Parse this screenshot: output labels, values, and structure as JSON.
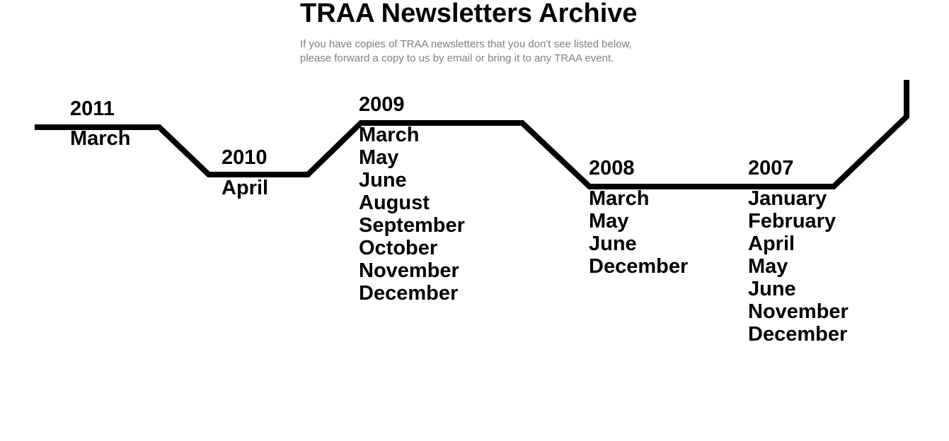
{
  "header": {
    "title": "TRAA Newsletters Archive",
    "intro_line1": "If you have copies of TRAA newsletters that you don't see listed below,",
    "intro_line2": "please forward a copy to us by email or bring it to any TRAA event."
  },
  "archive": [
    {
      "year": "2011",
      "months": [
        "March"
      ]
    },
    {
      "year": "2010",
      "months": [
        "April"
      ]
    },
    {
      "year": "2009",
      "months": [
        "March",
        "May",
        "June",
        "August",
        "September",
        "October",
        "November",
        "December"
      ]
    },
    {
      "year": "2008",
      "months": [
        "March",
        "May",
        "June",
        "December"
      ]
    },
    {
      "year": "2007",
      "months": [
        "January",
        "February",
        "April",
        "May",
        "June",
        "November",
        "December"
      ]
    }
  ],
  "colors": {
    "timeline": "#000000",
    "intro_text": "#808080"
  }
}
